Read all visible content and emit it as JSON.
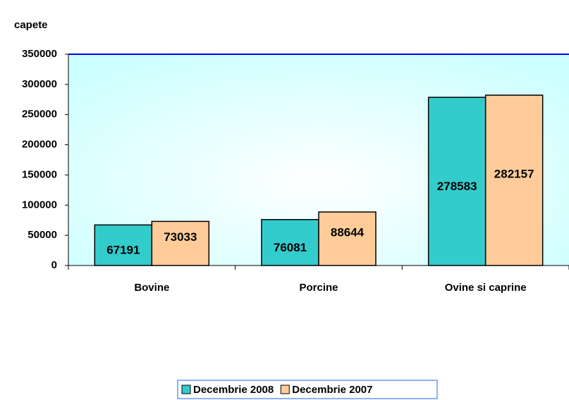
{
  "chart_data": {
    "type": "bar",
    "ylabel": "capete",
    "categories": [
      "Bovine",
      "Porcine",
      "Ovine si caprine"
    ],
    "series": [
      {
        "name": "Decembrie 2008",
        "color": "#33cccc",
        "values": [
          67191,
          76081,
          278583
        ]
      },
      {
        "name": "Decembrie 2007",
        "color": "#ffcc99",
        "values": [
          73033,
          88644,
          282157
        ]
      }
    ],
    "ylim": [
      0,
      350000
    ],
    "yticks": [
      0,
      50000,
      100000,
      150000,
      200000,
      250000,
      300000,
      350000
    ],
    "legend": "bottom"
  }
}
